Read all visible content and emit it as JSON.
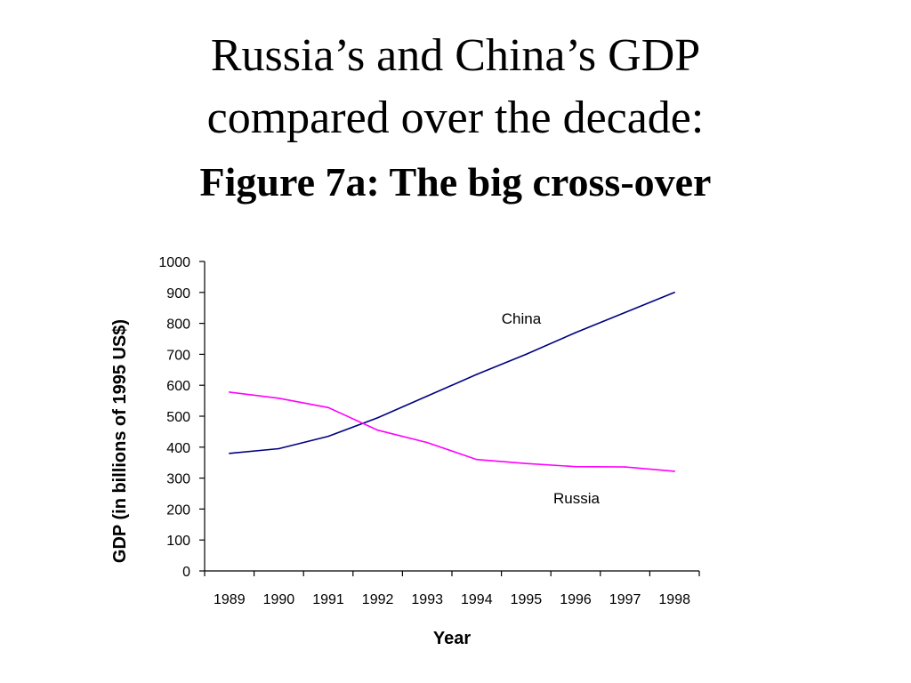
{
  "slide": {
    "title_line1": "Russia’s and China’s GDP",
    "title_line2": "compared over the decade:",
    "title_line3": "Figure 7a: The big cross-over"
  },
  "chart_data": {
    "type": "line",
    "x": [
      "1989",
      "1990",
      "1991",
      "1992",
      "1993",
      "1994",
      "1995",
      "1996",
      "1997",
      "1998"
    ],
    "xlabel": "Year",
    "ylabel": "GDP (in billions of 1995 US$)",
    "ylim": [
      0,
      1000
    ],
    "yticks": [
      0,
      100,
      200,
      300,
      400,
      500,
      600,
      700,
      800,
      900,
      1000
    ],
    "grid": false,
    "legend": "none",
    "series": [
      {
        "name": "China",
        "color": "#000080",
        "values": [
          380,
          395,
          435,
          495,
          565,
          635,
          700,
          770,
          835,
          900
        ]
      },
      {
        "name": "Russia",
        "color": "#ff00ff",
        "values": [
          578,
          558,
          528,
          455,
          415,
          360,
          347,
          337,
          336,
          322
        ]
      }
    ]
  }
}
